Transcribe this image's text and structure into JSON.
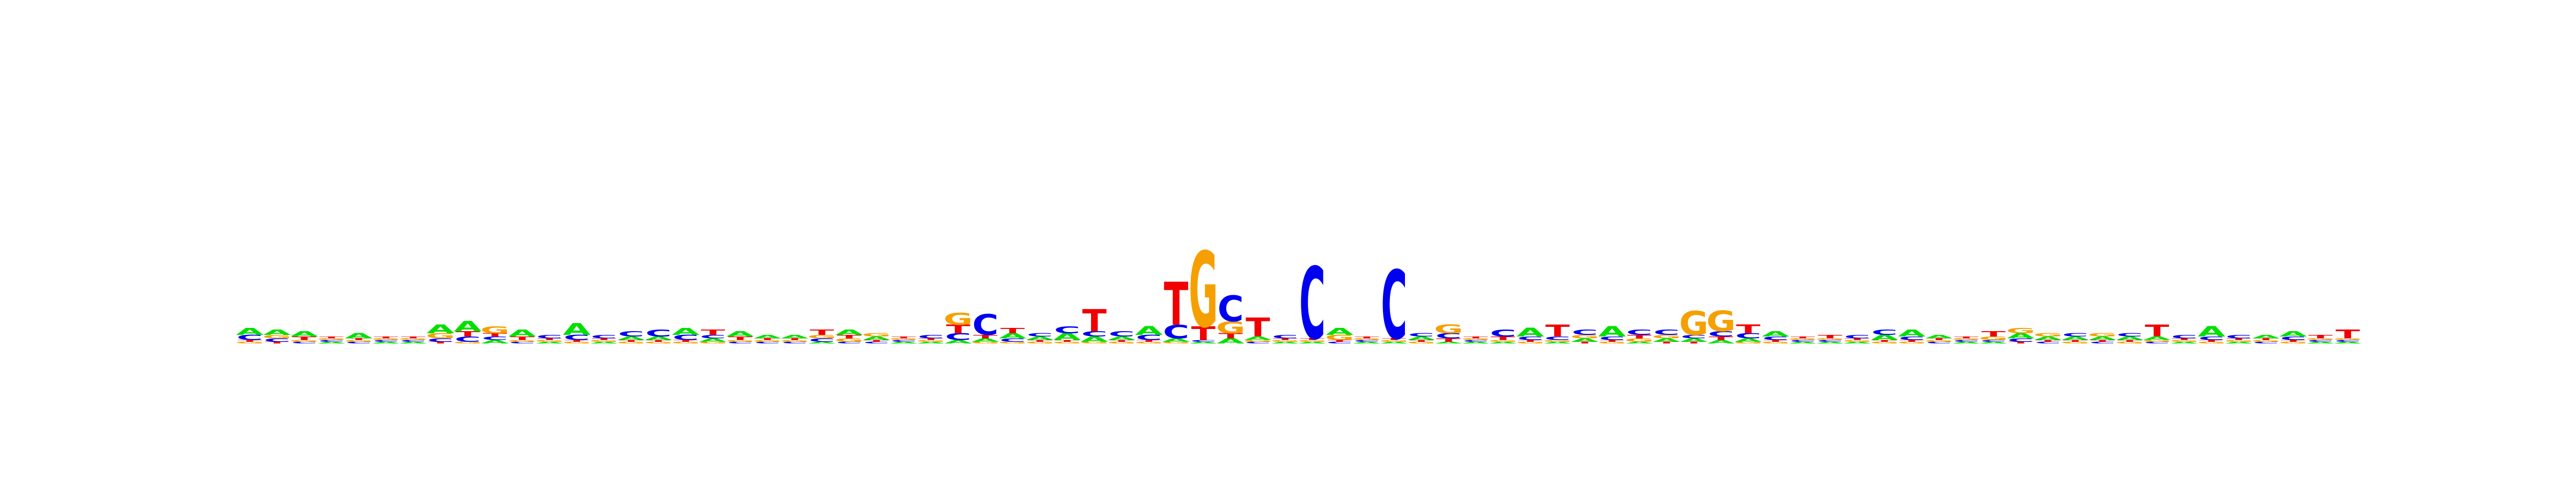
{
  "chart_data": {
    "type": "sequence_logo",
    "alphabet": [
      "A",
      "C",
      "G",
      "T"
    ],
    "colors": {
      "A": "#00e000",
      "C": "#0000f0",
      "G": "#f5a000",
      "T": "#f00000"
    },
    "ylim": [
      0,
      2
    ],
    "xlabel": "",
    "ylabel": "",
    "title": "",
    "positions": [
      {
        "A": 0.04,
        "C": 0.03,
        "G": 0.01,
        "T": 0.01
      },
      {
        "A": 0.03,
        "C": 0.02,
        "G": 0.02,
        "T": 0.01
      },
      {
        "A": 0.03,
        "C": 0.01,
        "G": 0.01,
        "T": 0.02
      },
      {
        "A": 0.01,
        "C": 0.01,
        "G": 0.01,
        "T": 0.01
      },
      {
        "A": 0.03,
        "C": 0.01,
        "G": 0.01,
        "T": 0.01
      },
      {
        "A": 0.01,
        "C": 0.01,
        "G": 0.01,
        "T": 0.01
      },
      {
        "A": 0.01,
        "C": 0.01,
        "G": 0.01,
        "T": 0.01
      },
      {
        "A": 0.05,
        "C": 0.02,
        "G": 0.03,
        "T": 0.01
      },
      {
        "A": 0.06,
        "C": 0.03,
        "G": 0.01,
        "T": 0.03
      },
      {
        "A": 0.02,
        "C": 0.02,
        "G": 0.04,
        "T": 0.02
      },
      {
        "A": 0.04,
        "C": 0.01,
        "G": 0.01,
        "T": 0.02
      },
      {
        "A": 0.01,
        "C": 0.02,
        "G": 0.01,
        "T": 0.01
      },
      {
        "A": 0.07,
        "C": 0.03,
        "G": 0.01,
        "T": 0.01
      },
      {
        "A": 0.01,
        "C": 0.02,
        "G": 0.01,
        "T": 0.01
      },
      {
        "A": 0.02,
        "C": 0.03,
        "G": 0.01,
        "T": 0.01
      },
      {
        "A": 0.02,
        "C": 0.04,
        "G": 0.01,
        "T": 0.01
      },
      {
        "A": 0.04,
        "C": 0.03,
        "G": 0.01,
        "T": 0.01
      },
      {
        "A": 0.02,
        "C": 0.02,
        "G": 0.01,
        "T": 0.03
      },
      {
        "A": 0.03,
        "C": 0.01,
        "G": 0.01,
        "T": 0.02
      },
      {
        "A": 0.02,
        "C": 0.01,
        "G": 0.01,
        "T": 0.01
      },
      {
        "A": 0.02,
        "C": 0.01,
        "G": 0.01,
        "T": 0.01
      },
      {
        "A": 0.01,
        "C": 0.02,
        "G": 0.02,
        "T": 0.03
      },
      {
        "A": 0.03,
        "C": 0.01,
        "G": 0.02,
        "T": 0.02
      },
      {
        "A": 0.02,
        "C": 0.01,
        "G": 0.02,
        "T": 0.01
      },
      {
        "A": 0.01,
        "C": 0.01,
        "G": 0.01,
        "T": 0.01
      },
      {
        "A": 0.01,
        "C": 0.02,
        "G": 0.01,
        "T": 0.01
      },
      {
        "A": 0.02,
        "C": 0.04,
        "G": 0.07,
        "T": 0.05
      },
      {
        "A": 0.02,
        "C": 0.12,
        "G": 0.01,
        "T": 0.02
      },
      {
        "A": 0.03,
        "C": 0.02,
        "G": 0.01,
        "T": 0.03
      },
      {
        "A": 0.02,
        "C": 0.02,
        "G": 0.01,
        "T": 0.01
      },
      {
        "A": 0.04,
        "C": 0.04,
        "G": 0.01,
        "T": 0.01
      },
      {
        "A": 0.03,
        "C": 0.03,
        "G": 0.01,
        "T": 0.13
      },
      {
        "A": 0.02,
        "C": 0.03,
        "G": 0.01,
        "T": 0.01
      },
      {
        "A": 0.05,
        "C": 0.03,
        "G": 0.01,
        "T": 0.01
      },
      {
        "A": 0.02,
        "C": 0.08,
        "G": 0.01,
        "T": 0.25
      },
      {
        "A": 0.01,
        "C": 0.01,
        "G": 0.44,
        "T": 0.08
      },
      {
        "A": 0.03,
        "C": 0.15,
        "G": 0.07,
        "T": 0.03
      },
      {
        "A": 0.02,
        "C": 0.01,
        "G": 0.01,
        "T": 0.11
      },
      {
        "A": 0.01,
        "C": 0.02,
        "G": 0.01,
        "T": 0.01
      },
      {
        "A": 0.01,
        "C": 0.42,
        "G": 0.01,
        "T": 0.01
      },
      {
        "A": 0.04,
        "C": 0.01,
        "G": 0.03,
        "T": 0.01
      },
      {
        "A": 0.01,
        "C": 0.01,
        "G": 0.01,
        "T": 0.01
      },
      {
        "A": 0.01,
        "C": 0.4,
        "G": 0.01,
        "T": 0.01
      },
      {
        "A": 0.02,
        "C": 0.02,
        "G": 0.01,
        "T": 0.01
      },
      {
        "A": 0.01,
        "C": 0.03,
        "G": 0.05,
        "T": 0.02
      },
      {
        "A": 0.01,
        "C": 0.01,
        "G": 0.01,
        "T": 0.01
      },
      {
        "A": 0.01,
        "C": 0.04,
        "G": 0.01,
        "T": 0.02
      },
      {
        "A": 0.05,
        "C": 0.02,
        "G": 0.01,
        "T": 0.01
      },
      {
        "A": 0.01,
        "C": 0.02,
        "G": 0.01,
        "T": 0.07
      },
      {
        "A": 0.02,
        "C": 0.03,
        "G": 0.02,
        "T": 0.01
      },
      {
        "A": 0.06,
        "C": 0.02,
        "G": 0.01,
        "T": 0.01
      },
      {
        "A": 0.01,
        "C": 0.03,
        "G": 0.02,
        "T": 0.02
      },
      {
        "A": 0.02,
        "C": 0.03,
        "G": 0.02,
        "T": 0.01
      },
      {
        "A": 0.02,
        "C": 0.02,
        "G": 0.14,
        "T": 0.01
      },
      {
        "A": 0.02,
        "C": 0.03,
        "G": 0.12,
        "T": 0.02
      },
      {
        "A": 0.02,
        "C": 0.03,
        "G": 0.01,
        "T": 0.05
      },
      {
        "A": 0.03,
        "C": 0.02,
        "G": 0.01,
        "T": 0.01
      },
      {
        "A": 0.01,
        "C": 0.01,
        "G": 0.01,
        "T": 0.01
      },
      {
        "A": 0.01,
        "C": 0.01,
        "G": 0.01,
        "T": 0.02
      },
      {
        "A": 0.01,
        "C": 0.02,
        "G": 0.01,
        "T": 0.01
      },
      {
        "A": 0.03,
        "C": 0.03,
        "G": 0.01,
        "T": 0.01
      },
      {
        "A": 0.04,
        "C": 0.02,
        "G": 0.01,
        "T": 0.01
      },
      {
        "A": 0.02,
        "C": 0.01,
        "G": 0.01,
        "T": 0.01
      },
      {
        "A": 0.01,
        "C": 0.01,
        "G": 0.01,
        "T": 0.01
      },
      {
        "A": 0.01,
        "C": 0.01,
        "G": 0.02,
        "T": 0.03
      },
      {
        "A": 0.03,
        "C": 0.02,
        "G": 0.03,
        "T": 0.01
      },
      {
        "A": 0.02,
        "C": 0.01,
        "G": 0.02,
        "T": 0.01
      },
      {
        "A": 0.02,
        "C": 0.02,
        "G": 0.01,
        "T": 0.01
      },
      {
        "A": 0.02,
        "C": 0.01,
        "G": 0.02,
        "T": 0.01
      },
      {
        "A": 0.02,
        "C": 0.02,
        "G": 0.01,
        "T": 0.01
      },
      {
        "A": 0.02,
        "C": 0.01,
        "G": 0.01,
        "T": 0.07
      },
      {
        "A": 0.01,
        "C": 0.02,
        "G": 0.01,
        "T": 0.01
      },
      {
        "A": 0.06,
        "C": 0.02,
        "G": 0.01,
        "T": 0.01
      },
      {
        "A": 0.01,
        "C": 0.02,
        "G": 0.01,
        "T": 0.01
      },
      {
        "A": 0.02,
        "C": 0.01,
        "G": 0.01,
        "T": 0.01
      },
      {
        "A": 0.03,
        "C": 0.02,
        "G": 0.01,
        "T": 0.01
      },
      {
        "A": 0.01,
        "C": 0.01,
        "G": 0.01,
        "T": 0.02
      },
      {
        "A": 0.01,
        "C": 0.01,
        "G": 0.01,
        "T": 0.05
      }
    ]
  }
}
